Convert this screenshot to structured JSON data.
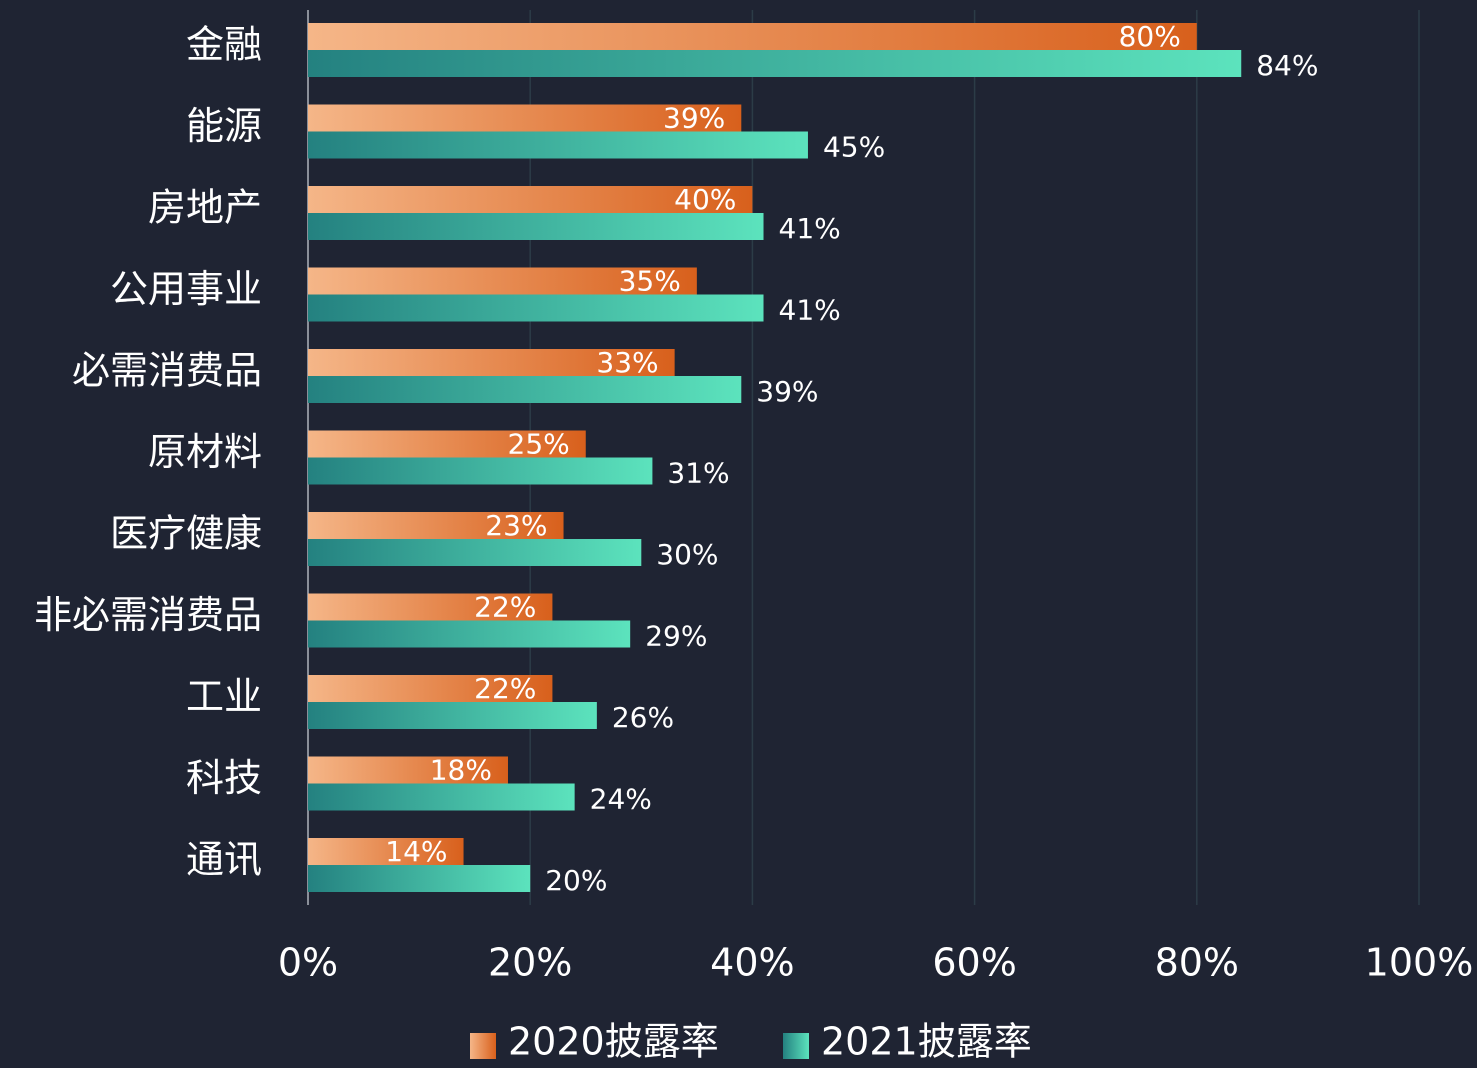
{
  "chart_data": {
    "type": "bar",
    "orientation": "horizontal",
    "categories": [
      "金融",
      "能源",
      "房地产",
      "公用事业",
      "必需消费品",
      "原材料",
      "医疗健康",
      "非必需消费品",
      "工业",
      "科技",
      "通讯"
    ],
    "series": [
      {
        "name": "2020披露率",
        "colors": [
          "#f5b688",
          "#d8601c"
        ],
        "values": [
          80,
          39,
          40,
          35,
          33,
          25,
          23,
          22,
          22,
          18,
          14
        ],
        "value_labels": [
          "80%",
          "39%",
          "40%",
          "35%",
          "33%",
          "25%",
          "23%",
          "22%",
          "22%",
          "18%",
          "14%"
        ]
      },
      {
        "name": "2021披露率",
        "colors": [
          "#248180",
          "#5ce3bd"
        ],
        "values": [
          84,
          45,
          41,
          41,
          39,
          31,
          30,
          29,
          26,
          24,
          20
        ],
        "value_labels": [
          "84%",
          "45%",
          "41%",
          "41%",
          "39%",
          "31%",
          "30%",
          "29%",
          "26%",
          "24%",
          "20%"
        ]
      }
    ],
    "xlim": [
      0,
      100
    ],
    "xticks": [
      {
        "value": 0,
        "label": "0%"
      },
      {
        "value": 20,
        "label": "20%"
      },
      {
        "value": 40,
        "label": "40%"
      },
      {
        "value": 60,
        "label": "60%"
      },
      {
        "value": 80,
        "label": "80%"
      },
      {
        "value": 100,
        "label": "100%"
      }
    ],
    "grid": true,
    "legend": "bottom"
  }
}
